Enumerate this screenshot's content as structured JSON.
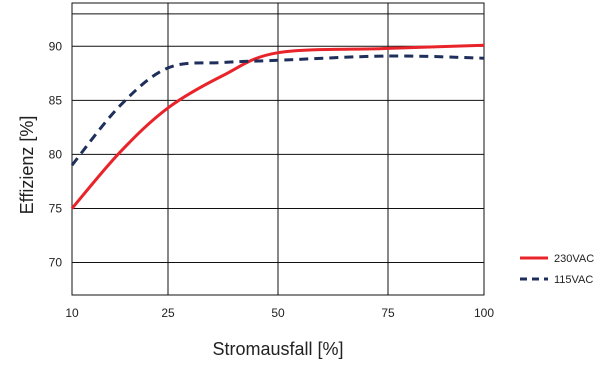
{
  "chart_data": {
    "type": "line",
    "xlabel": "Stromausfall [%]",
    "ylabel": "Effizienz [%]",
    "x_categories": [
      "10",
      "25",
      "50",
      "75",
      "100"
    ],
    "y_ticks": [
      "70",
      "75",
      "80",
      "85",
      "90"
    ],
    "ylim": [
      67,
      94
    ],
    "grid": true,
    "legend_position": "right",
    "series": [
      {
        "name": "230VAC",
        "color": "#e8242a",
        "style": "solid",
        "points": [
          {
            "x": "10",
            "y": 75.0
          },
          {
            "x": "17.5",
            "y": 80.2
          },
          {
            "x": "25",
            "y": 84.3
          },
          {
            "x": "37.5",
            "y": 87.3
          },
          {
            "x": "50",
            "y": 89.4
          },
          {
            "x": "75",
            "y": 89.8
          },
          {
            "x": "100",
            "y": 90.1
          }
        ]
      },
      {
        "name": "115VAC",
        "color": "#1f2f5c",
        "style": "dashed",
        "points": [
          {
            "x": "10",
            "y": 79.0
          },
          {
            "x": "17.5",
            "y": 84.5
          },
          {
            "x": "25",
            "y": 88.0
          },
          {
            "x": "37.5",
            "y": 88.5
          },
          {
            "x": "50",
            "y": 88.7
          },
          {
            "x": "75",
            "y": 89.1
          },
          {
            "x": "100",
            "y": 88.9
          }
        ]
      }
    ]
  }
}
